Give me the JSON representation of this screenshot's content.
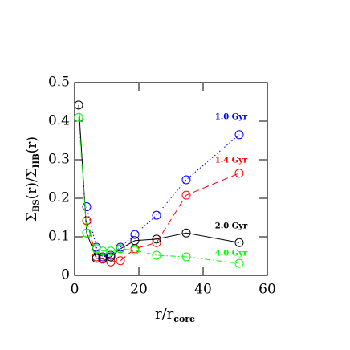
{
  "chart_data": {
    "type": "line",
    "xlabel": [
      "r/r",
      "core"
    ],
    "ylabel": [
      "Σ",
      "BS",
      "(r)/Σ",
      "HB",
      "(r)"
    ],
    "xlim": [
      0,
      60
    ],
    "ylim": [
      0,
      0.5
    ],
    "xticks": [
      0,
      20,
      40,
      60
    ],
    "yticks": [
      0,
      0.1,
      0.2,
      0.3,
      0.4,
      0.5
    ],
    "series": [
      {
        "name": "1.0 Gyr",
        "color": "#0000ff",
        "linestyle": "dotted",
        "x": [
          3.75,
          6.75,
          8.75,
          11.25,
          14.25,
          18.75,
          25.5,
          34.75,
          51.25
        ],
        "values": [
          0.178,
          0.073,
          0.048,
          0.052,
          0.073,
          0.106,
          0.156,
          0.248,
          0.365
        ]
      },
      {
        "name": "1.4 Gyr",
        "color": "#ff0000",
        "linestyle": "dashed",
        "x": [
          3.75,
          6.75,
          8.75,
          11.25,
          14.25,
          18.75,
          25.5,
          34.75,
          51.25
        ],
        "values": [
          0.142,
          0.048,
          0.042,
          0.035,
          0.038,
          0.069,
          0.085,
          0.208,
          0.265
        ]
      },
      {
        "name": "2.0 Gyr",
        "color": "#000000",
        "linestyle": "solid",
        "x": [
          1.25,
          3.75,
          6.75,
          8.75,
          11.25,
          14.25,
          18.75,
          25.5,
          34.75,
          51.25
        ],
        "values": [
          0.442,
          0.11,
          0.044,
          0.044,
          0.048,
          0.069,
          0.09,
          0.094,
          0.11,
          0.085
        ]
      },
      {
        "name": "4.0 Gyr",
        "color": "#00ff00",
        "linestyle": "dashdot",
        "x": [
          1.25,
          3.75,
          6.75,
          8.75,
          11.25,
          14.25,
          18.75,
          25.5,
          34.75,
          51.25
        ],
        "values": [
          0.41,
          0.11,
          0.069,
          0.063,
          0.063,
          0.069,
          0.065,
          0.052,
          0.048,
          0.031
        ]
      }
    ]
  }
}
